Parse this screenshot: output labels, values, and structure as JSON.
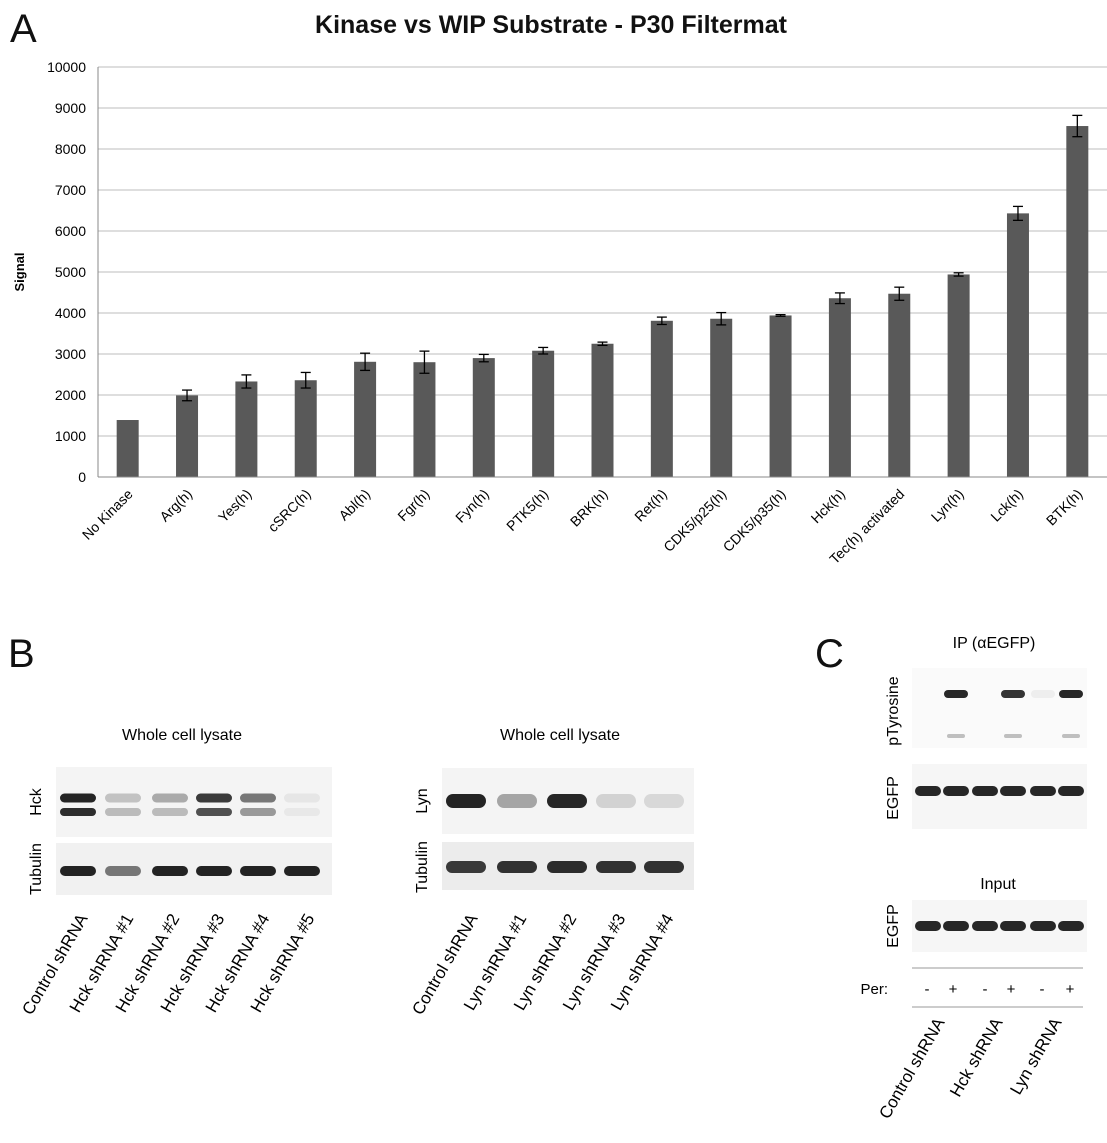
{
  "panel_a": {
    "letter": "A",
    "chart_data": {
      "type": "bar",
      "title": "Kinase vs WIP Substrate - P30 Filtermat",
      "ylabel": "Signal",
      "xlabel": "",
      "ylim": [
        0,
        10000
      ],
      "yticks": [
        0,
        1000,
        2000,
        3000,
        4000,
        5000,
        6000,
        7000,
        8000,
        9000,
        10000
      ],
      "grid": true,
      "categories": [
        "No Kinase",
        "Arg(h)",
        "Yes(h)",
        "cSRC(h)",
        "Abl(h)",
        "Fgr(h)",
        "Fyn(h)",
        "PTK5(h)",
        "BRK(h)",
        "Ret(h)",
        "CDK5/p25(h)",
        "CDK5/p35(h)",
        "Hck(h)",
        "Tec(h) activated",
        "Lyn(h)",
        "Lck(h)",
        "BTK(h)"
      ],
      "values": [
        1390,
        1990,
        2330,
        2360,
        2810,
        2800,
        2900,
        3080,
        3250,
        3810,
        3860,
        3940,
        4360,
        4470,
        4940,
        6430,
        8560
      ],
      "errors": [
        0,
        130,
        160,
        190,
        210,
        270,
        90,
        80,
        40,
        90,
        150,
        20,
        130,
        160,
        40,
        170,
        260
      ],
      "bar_color": "#595959"
    }
  },
  "panel_b": {
    "letter": "B",
    "left": {
      "title": "Whole cell lysate",
      "rows": [
        "Hck",
        "Tubulin"
      ],
      "lanes": [
        "Control shRNA",
        "Hck shRNA #1",
        "Hck shRNA #2",
        "Hck shRNA #3",
        "Hck shRNA #4",
        "Hck shRNA #5"
      ]
    },
    "right": {
      "title": "Whole cell lysate",
      "rows": [
        "Lyn",
        "Tubulin"
      ],
      "lanes": [
        "Control shRNA",
        "Lyn shRNA #1",
        "Lyn shRNA #2",
        "Lyn shRNA #3",
        "Lyn shRNA #4"
      ]
    }
  },
  "panel_c": {
    "letter": "C",
    "ip_title": "IP (αEGFP)",
    "rows": [
      "pTyrosine",
      "EGFP"
    ],
    "input_title": "Input",
    "input_row": "EGFP",
    "per_label": "Per:",
    "per_values": [
      "-",
      "+",
      "-",
      "+",
      "-",
      "+"
    ],
    "groups": [
      "Control shRNA",
      "Hck shRNA",
      "Lyn shRNA"
    ]
  }
}
